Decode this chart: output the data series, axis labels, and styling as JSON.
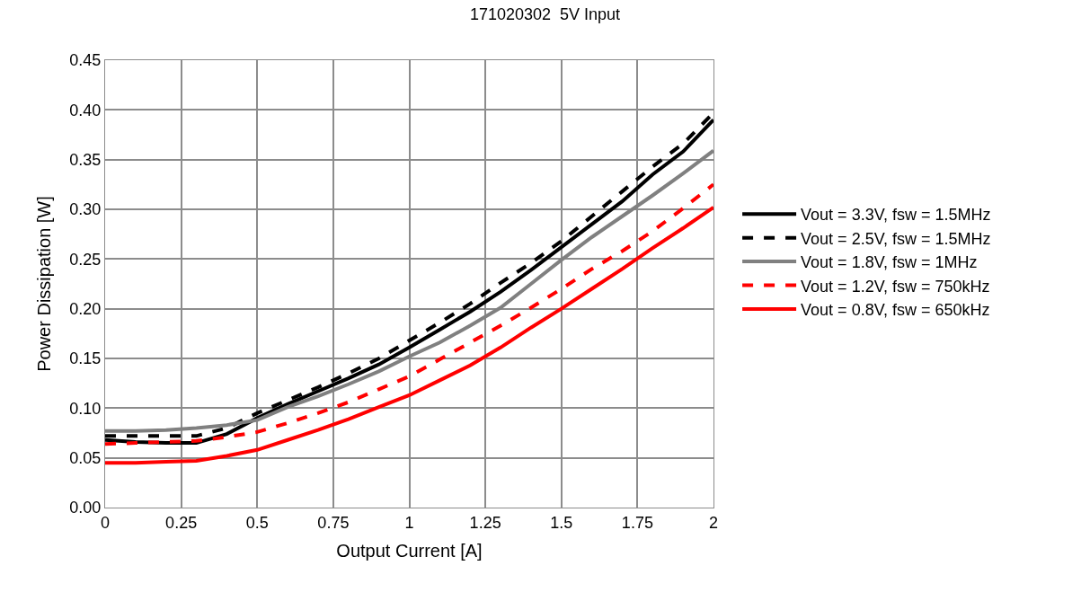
{
  "chart_data": {
    "type": "line",
    "title": "171020302  5V Input",
    "xlabel": "Output Current [A]",
    "ylabel": "Power Dissipation [W]",
    "x": [
      0,
      0.1,
      0.2,
      0.3,
      0.4,
      0.5,
      0.6,
      0.7,
      0.8,
      0.9,
      1.0,
      1.1,
      1.2,
      1.3,
      1.4,
      1.5,
      1.6,
      1.7,
      1.8,
      1.9,
      2.0
    ],
    "series": [
      {
        "name": "Vout = 3.3V, fsw = 1.5MHz",
        "color": "#000000",
        "line_style": "solid",
        "values": [
          0.068,
          0.066,
          0.065,
          0.065,
          0.074,
          0.09,
          0.104,
          0.117,
          0.13,
          0.144,
          0.161,
          0.179,
          0.197,
          0.217,
          0.239,
          0.262,
          0.285,
          0.308,
          0.335,
          0.358,
          0.39
        ]
      },
      {
        "name": "Vout = 2.5V, fsw = 1.5MHz",
        "color": "#000000",
        "line_style": "dashed",
        "values": [
          0.072,
          0.072,
          0.072,
          0.072,
          0.08,
          0.095,
          0.108,
          0.121,
          0.135,
          0.15,
          0.168,
          0.186,
          0.205,
          0.226,
          0.246,
          0.268,
          0.293,
          0.318,
          0.343,
          0.366,
          0.397
        ]
      },
      {
        "name": "Vout = 1.8V, fsw = 1MHz",
        "color": "#808080",
        "line_style": "solid",
        "values": [
          0.077,
          0.077,
          0.078,
          0.08,
          0.083,
          0.088,
          0.101,
          0.112,
          0.124,
          0.137,
          0.152,
          0.166,
          0.183,
          0.201,
          0.225,
          0.249,
          0.272,
          0.293,
          0.314,
          0.336,
          0.359
        ]
      },
      {
        "name": "Vout = 1.2V, fsw = 750kHz",
        "color": "#ff0000",
        "line_style": "dashed",
        "values": [
          0.064,
          0.065,
          0.066,
          0.067,
          0.071,
          0.076,
          0.085,
          0.095,
          0.106,
          0.119,
          0.132,
          0.149,
          0.166,
          0.183,
          0.201,
          0.22,
          0.24,
          0.258,
          0.278,
          0.301,
          0.325
        ]
      },
      {
        "name": "Vout = 0.8V, fsw = 650kHz",
        "color": "#ff0000",
        "line_style": "solid",
        "values": [
          0.045,
          0.045,
          0.046,
          0.047,
          0.052,
          0.058,
          0.068,
          0.078,
          0.089,
          0.101,
          0.113,
          0.128,
          0.143,
          0.161,
          0.181,
          0.2,
          0.22,
          0.24,
          0.261,
          0.281,
          0.302
        ]
      }
    ],
    "xlim": [
      0,
      2
    ],
    "xticks": [
      0,
      0.25,
      0.5,
      0.75,
      1,
      1.25,
      1.5,
      1.75,
      2
    ],
    "ylim": [
      0,
      0.45
    ],
    "yticks": [
      {
        "value": 0,
        "label": "0.00"
      },
      {
        "value": 0.05,
        "label": "0.05"
      },
      {
        "value": 0.1,
        "label": "0.10"
      },
      {
        "value": 0.15,
        "label": "0.15"
      },
      {
        "value": 0.2,
        "label": "0.20"
      },
      {
        "value": 0.25,
        "label": "0.25"
      },
      {
        "value": 0.3,
        "label": "0.30"
      },
      {
        "value": 0.35,
        "label": "0.35"
      },
      {
        "value": 0.4,
        "label": "0.40"
      },
      {
        "value": 0.45,
        "label": "0.45"
      }
    ],
    "grid": true,
    "legend": "right",
    "marker": "none"
  }
}
